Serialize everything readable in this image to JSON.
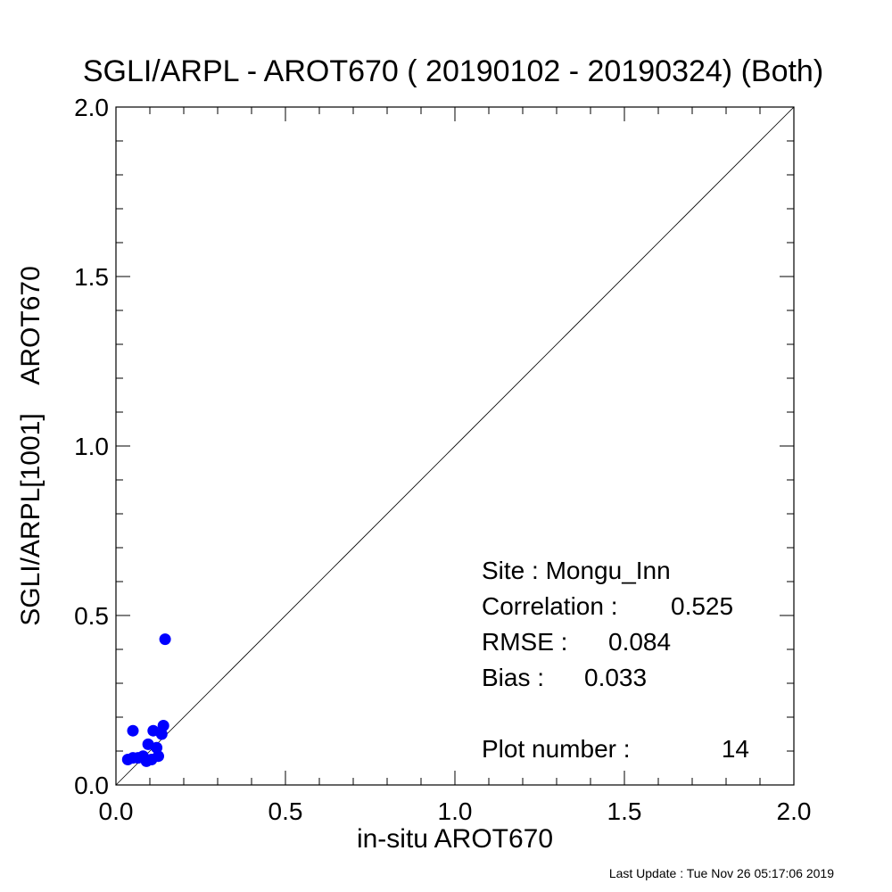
{
  "chart_data": {
    "type": "scatter",
    "title": "SGLI/ARPL - AROT670 ( 20190102 - 20190324) (Both)",
    "xlabel": "in-situ AROT670",
    "ylabel": "SGLI/ARPL[1001]    AROT670",
    "xlim": [
      0.0,
      2.0
    ],
    "ylim": [
      0.0,
      2.0
    ],
    "major_ticks": [
      "0.0",
      "0.5",
      "1.0",
      "1.5",
      "2.0"
    ],
    "identity_line": true,
    "point_color": "#0000ff",
    "points": [
      {
        "x": 0.035,
        "y": 0.075
      },
      {
        "x": 0.05,
        "y": 0.08
      },
      {
        "x": 0.065,
        "y": 0.08
      },
      {
        "x": 0.08,
        "y": 0.085
      },
      {
        "x": 0.09,
        "y": 0.07
      },
      {
        "x": 0.105,
        "y": 0.075
      },
      {
        "x": 0.125,
        "y": 0.085
      },
      {
        "x": 0.095,
        "y": 0.12
      },
      {
        "x": 0.12,
        "y": 0.11
      },
      {
        "x": 0.11,
        "y": 0.16
      },
      {
        "x": 0.135,
        "y": 0.15
      },
      {
        "x": 0.14,
        "y": 0.175
      },
      {
        "x": 0.05,
        "y": 0.16
      },
      {
        "x": 0.145,
        "y": 0.43
      }
    ],
    "annotations": {
      "site_label": "Site : Mongu_Inn",
      "correlation_label": "Correlation :",
      "correlation_value": "0.525",
      "rmse_label": "RMSE :",
      "rmse_value": "0.084",
      "bias_label": "Bias :",
      "bias_value": "0.033",
      "plot_number_label": "Plot number :",
      "plot_number_value": "14"
    }
  },
  "footer": {
    "last_update": "Last Update : Tue Nov 26 05:17:06 2019"
  }
}
